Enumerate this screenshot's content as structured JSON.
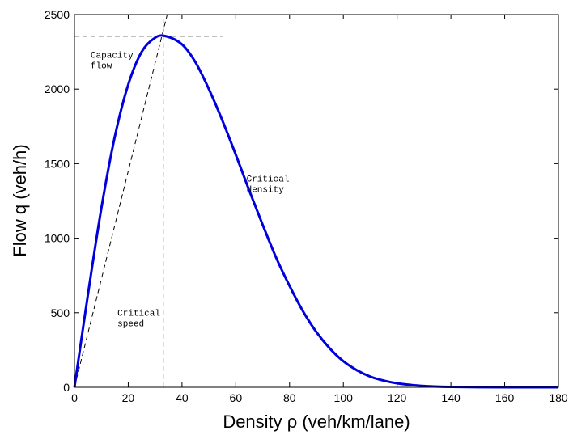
{
  "chart_data": {
    "type": "line",
    "title": "",
    "xlabel": "Density ρ (veh/km/lane)",
    "ylabel": "Flow q (veh/h)",
    "xlim": [
      0,
      180
    ],
    "ylim": [
      0,
      2500
    ],
    "xticks": [
      0,
      20,
      40,
      60,
      80,
      100,
      120,
      140,
      160,
      180
    ],
    "yticks": [
      0,
      500,
      1000,
      1500,
      2000,
      2500
    ],
    "grid": false,
    "legend": "none",
    "series": [
      {
        "color": "#0000dd",
        "x": [
          0,
          5,
          10,
          15,
          20,
          25,
          30,
          34,
          40,
          45,
          50,
          55,
          60,
          65,
          70,
          75,
          80,
          85,
          90,
          95,
          100,
          105,
          110,
          115,
          120,
          125,
          130,
          135,
          140,
          150,
          160,
          170,
          180
        ],
        "y": [
          0,
          620,
          1200,
          1680,
          2030,
          2250,
          2345,
          2355,
          2300,
          2180,
          2000,
          1790,
          1560,
          1320,
          1090,
          870,
          680,
          510,
          370,
          260,
          175,
          115,
          72,
          45,
          27,
          16,
          9,
          5,
          3,
          1,
          0,
          0,
          0
        ]
      }
    ],
    "reference_lines": [
      {
        "kind": "horizontal",
        "y": 2355,
        "x_from": 0,
        "x_to": 55,
        "style": "dashed"
      },
      {
        "kind": "vertical",
        "x": 33,
        "y_from": 0,
        "y_to": 2500,
        "style": "dashed"
      },
      {
        "kind": "ray",
        "x_from": 0,
        "y_from": 0,
        "x_to": 34.5,
        "y_to": 2500,
        "style": "dashed"
      }
    ],
    "annotations": [
      {
        "lines": [
          "Capacity",
          "flow"
        ],
        "x": 6,
        "y": 2210
      },
      {
        "lines": [
          "Critical",
          "density"
        ],
        "x": 64,
        "y": 1380
      },
      {
        "lines": [
          "Critical",
          "speed"
        ],
        "x": 16,
        "y": 480
      }
    ]
  }
}
